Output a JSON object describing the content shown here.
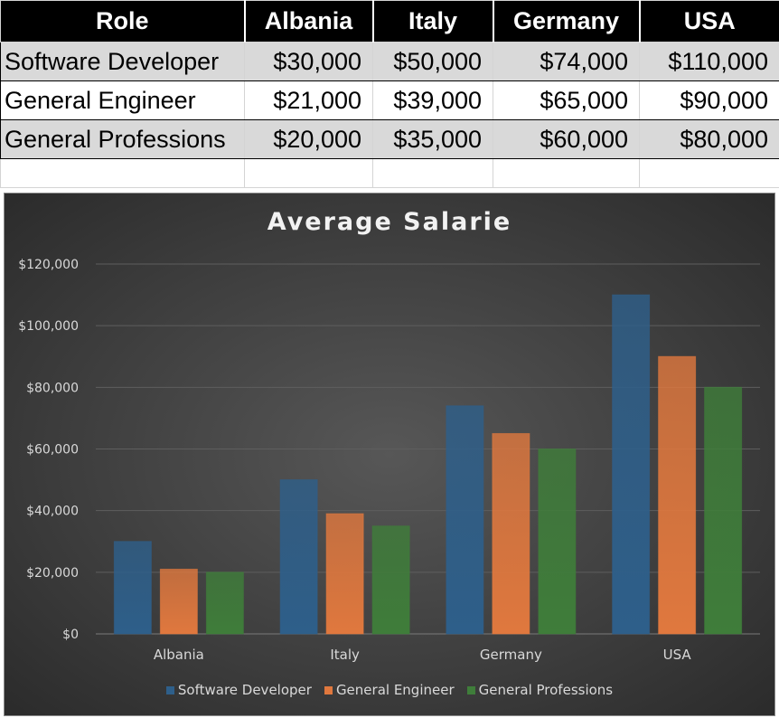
{
  "table": {
    "headers": [
      "Role",
      "Albania",
      "Italy",
      "Germany",
      "USA"
    ],
    "rows": [
      [
        "Software Developer",
        "$30,000",
        "$50,000",
        "$74,000",
        "$110,000"
      ],
      [
        "General Engineer",
        "$21,000",
        "$39,000",
        "$65,000",
        "$90,000"
      ],
      [
        "General Professions",
        "$20,000",
        "$35,000",
        "$60,000",
        "$80,000"
      ]
    ]
  },
  "chart_data": {
    "type": "bar",
    "title": "Average Salarie",
    "categories": [
      "Albania",
      "Italy",
      "Germany",
      "USA"
    ],
    "series": [
      {
        "name": "Software Developer",
        "values": [
          30000,
          50000,
          74000,
          110000
        ],
        "color": "#2e5f8a"
      },
      {
        "name": "General Engineer",
        "values": [
          21000,
          39000,
          65000,
          90000
        ],
        "color": "#e0783e"
      },
      {
        "name": "General Professions",
        "values": [
          20000,
          35000,
          60000,
          80000
        ],
        "color": "#3f7d3a"
      }
    ],
    "ylim": [
      0,
      120000
    ],
    "yticks": [
      "$0",
      "$20,000",
      "$40,000",
      "$60,000",
      "$80,000",
      "$100,000",
      "$120,000"
    ],
    "grid": true,
    "legend_position": "bottom"
  }
}
